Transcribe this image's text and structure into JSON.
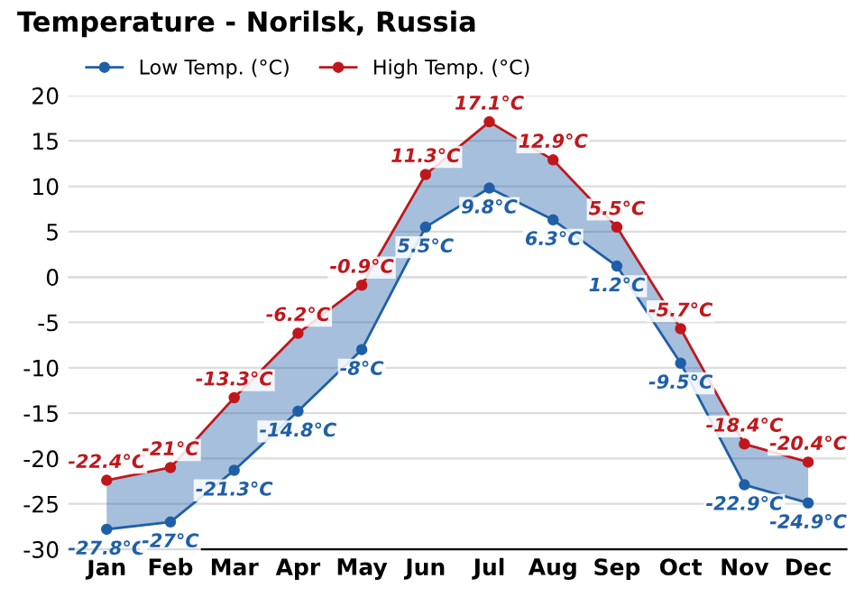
{
  "chart_data": {
    "type": "line",
    "title": "Temperature - Norilsk, Russia",
    "categories": [
      "Jan",
      "Feb",
      "Mar",
      "Apr",
      "May",
      "Jun",
      "Jul",
      "Aug",
      "Sep",
      "Oct",
      "Nov",
      "Dec"
    ],
    "series": [
      {
        "name": "Low Temp. (°C)",
        "color": "#1f5fa8",
        "values": [
          -27.8,
          -27,
          -21.3,
          -14.8,
          -8,
          5.5,
          9.8,
          6.3,
          1.2,
          -9.5,
          -22.9,
          -24.9
        ],
        "value_labels": [
          "-27.8°C",
          "-27°C",
          "-21.3°C",
          "-14.8°C",
          "-8°C",
          "5.5°C",
          "9.8°C",
          "6.3°C",
          "1.2°C",
          "-9.5°C",
          "-22.9°C",
          "-24.9°C"
        ],
        "lower": [
          -27.8,
          -27,
          -21.3,
          -14.8,
          -8,
          5.5,
          9.8,
          6.3,
          1.2,
          -9.5,
          -22.9,
          -24.9
        ],
        "upper": [
          -22.4,
          -21,
          -13.3,
          -6.2,
          -0.9,
          11.3,
          17.1,
          12.9,
          5.5,
          -5.7,
          -18.4,
          -20.4
        ]
      },
      {
        "name": "High Temp. (°C)",
        "color": "#c0171c",
        "values": [
          -22.4,
          -21,
          -13.3,
          -6.2,
          -0.9,
          11.3,
          17.1,
          12.9,
          5.5,
          -5.7,
          -18.4,
          -20.4
        ],
        "value_labels": [
          "-22.4°C",
          "-21°C",
          "-13.3°C",
          "-6.2°C",
          "-0.9°C",
          "11.3°C",
          "17.1°C",
          "12.9°C",
          "5.5°C",
          "-5.7°C",
          "-18.4°C",
          "-20.4°C"
        ]
      }
    ],
    "ylim": [
      -30,
      20
    ],
    "yticks": [
      -30,
      -25,
      -20,
      -15,
      -10,
      -5,
      0,
      5,
      10,
      15,
      20
    ],
    "grid": "y",
    "legend": "top left",
    "marker": "circle",
    "line_style": "solid"
  }
}
